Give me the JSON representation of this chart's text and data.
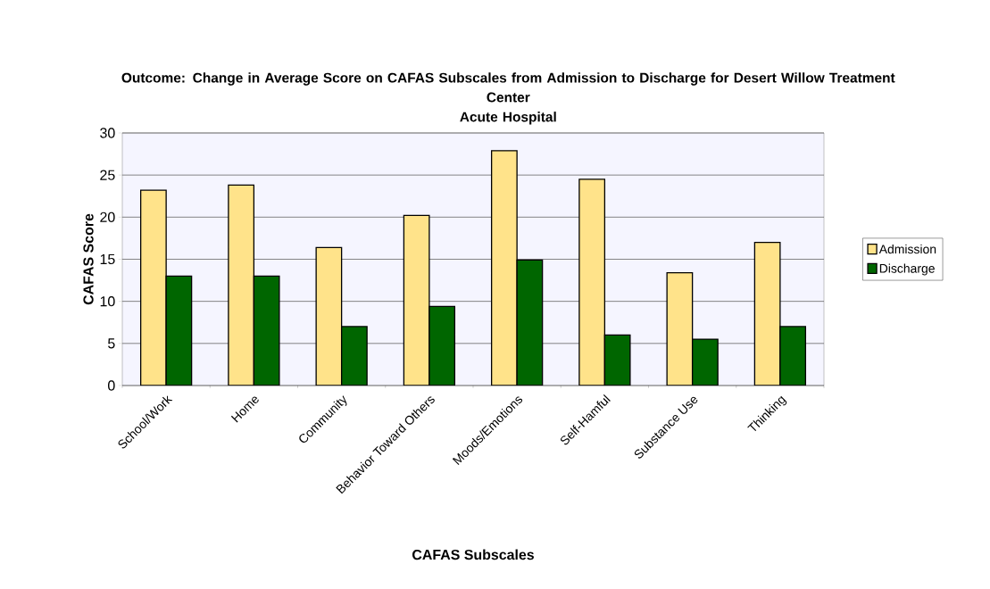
{
  "chart_data": {
    "type": "bar",
    "title": "Outcome: Change in Average Score on CAFAS Subscales from Admission to Discharge for Desert Willow Treatment Center",
    "subtitle": "Acute Hospital",
    "xlabel": "CAFAS Subscales",
    "ylabel": "CAFAS Score",
    "categories": [
      "School/Work",
      "Home",
      "Community",
      "Behavior Toward Others",
      "Moods/Emotions",
      "Self-Hamful",
      "Substance Use",
      "Thinking"
    ],
    "series": [
      {
        "name": "Admission",
        "color": "#ffe38a",
        "values": [
          23.2,
          23.8,
          16.4,
          20.2,
          27.9,
          24.5,
          13.4,
          17.0
        ]
      },
      {
        "name": "Discharge",
        "color": "#006600",
        "values": [
          13.0,
          13.0,
          7.0,
          9.4,
          14.9,
          6.0,
          5.5,
          7.0
        ]
      }
    ],
    "ylim": [
      0,
      30
    ],
    "yticks": [
      0,
      5,
      10,
      15,
      20,
      25,
      30
    ],
    "grid": "y",
    "legend": "right"
  }
}
